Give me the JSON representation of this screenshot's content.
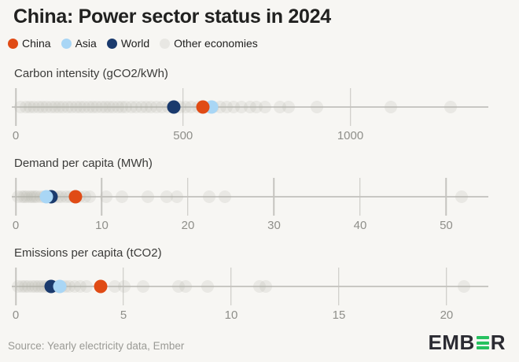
{
  "page": {
    "title": "China: Power sector status in 2024",
    "background": "#f7f6f3"
  },
  "legend": {
    "items": [
      {
        "label": "China",
        "color": "#e04b15"
      },
      {
        "label": "Asia",
        "color": "#a9d6f5"
      },
      {
        "label": "World",
        "color": "#1a3a6d"
      },
      {
        "label": "Other economies",
        "color": "#e8e7e3"
      }
    ]
  },
  "colors": {
    "other_economies_dot": "#b3b2ac",
    "axis_line": "#c8c7c3",
    "tick_label": "#8f8f8a",
    "logo_green": "#27c160",
    "logo_dark": "#2b2b32"
  },
  "chart_data": [
    {
      "type": "scatter",
      "title": "Carbon intensity (gCO2/kWh)",
      "xlim": [
        0,
        1410
      ],
      "ticks": [
        0,
        500,
        1000
      ],
      "grid": "vertical-ticks-only",
      "legend_position": "top-of-page",
      "series": [
        {
          "name": "Other economies",
          "color": "#b3b2ac",
          "values": [
            15,
            30,
            42,
            55,
            68,
            80,
            92,
            105,
            118,
            130,
            142,
            155,
            168,
            180,
            192,
            205,
            218,
            230,
            242,
            255,
            268,
            280,
            292,
            305,
            318,
            330,
            345,
            360,
            375,
            390,
            405,
            420,
            438,
            455,
            470,
            490,
            508,
            525,
            545,
            565,
            590,
            610,
            630,
            650,
            675,
            700,
            720,
            745,
            790,
            815,
            900,
            1120,
            1300
          ]
        },
        {
          "name": "World",
          "color": "#1a3a6d",
          "values": [
            472
          ]
        },
        {
          "name": "Asia",
          "color": "#a9d6f5",
          "values": [
            584
          ]
        },
        {
          "name": "China",
          "color": "#e04b15",
          "values": [
            560
          ]
        }
      ]
    },
    {
      "type": "scatter",
      "title": "Demand per capita (MWh)",
      "xlim": [
        0,
        54.8
      ],
      "ticks": [
        0,
        10,
        20,
        30,
        40,
        50
      ],
      "grid": "vertical-ticks-only",
      "series": [
        {
          "name": "Other economies",
          "color": "#b3b2ac",
          "values": [
            0.3,
            0.7,
            1.0,
            1.3,
            1.6,
            1.9,
            2.2,
            2.5,
            2.9,
            3.3,
            3.7,
            4.1,
            4.5,
            4.9,
            5.3,
            5.8,
            6.3,
            6.8,
            7.4,
            8.0,
            8.6,
            10.5,
            12.3,
            15.3,
            17.5,
            18.7,
            22.5,
            24.3,
            51.8
          ]
        },
        {
          "name": "World",
          "color": "#1a3a6d",
          "values": [
            4.1
          ]
        },
        {
          "name": "Asia",
          "color": "#a9d6f5",
          "values": [
            3.6
          ]
        },
        {
          "name": "China",
          "color": "#e04b15",
          "values": [
            6.9
          ]
        }
      ]
    },
    {
      "type": "scatter",
      "title": "Emissions per capita (tCO2)",
      "xlim": [
        0,
        21.9
      ],
      "ticks": [
        0,
        5,
        10,
        15,
        20
      ],
      "grid": "vertical-ticks-only",
      "series": [
        {
          "name": "Other economies",
          "color": "#b3b2ac",
          "values": [
            0.1,
            0.3,
            0.45,
            0.6,
            0.75,
            0.9,
            1.05,
            1.2,
            1.35,
            1.5,
            1.7,
            1.9,
            2.1,
            2.3,
            2.5,
            2.75,
            3.0,
            3.3,
            4.6,
            5.05,
            5.9,
            7.55,
            7.9,
            8.9,
            11.3,
            11.6,
            20.8
          ]
        },
        {
          "name": "World",
          "color": "#1a3a6d",
          "values": [
            1.65
          ]
        },
        {
          "name": "Asia",
          "color": "#a9d6f5",
          "values": [
            2.05
          ]
        },
        {
          "name": "China",
          "color": "#e04b15",
          "values": [
            3.95
          ]
        }
      ]
    }
  ],
  "footer": {
    "source": "Source: Yearly electricity data, Ember",
    "logo_left": "EMB",
    "logo_right": "R"
  }
}
